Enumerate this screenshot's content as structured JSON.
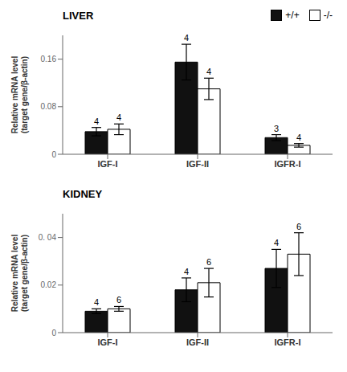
{
  "chart_data": [
    {
      "type": "bar",
      "title": "LIVER",
      "categories": [
        "IGF-I",
        "IGF-II",
        "IGFR-I"
      ],
      "series": [
        {
          "name": "+/+",
          "color": "#111111",
          "values": [
            0.038,
            0.155,
            0.028
          ],
          "errors": [
            0.007,
            0.03,
            0.005
          ],
          "n": [
            "4",
            "4",
            "3"
          ]
        },
        {
          "name": "-/-",
          "color": "#ffffff",
          "values": [
            0.042,
            0.11,
            0.015
          ],
          "errors": [
            0.009,
            0.018,
            0.003
          ],
          "n": [
            "4",
            "4",
            "4"
          ]
        }
      ],
      "ylabel": "Relative mRNA level\n(target gene/β-actin)",
      "ylim": [
        0,
        0.2
      ],
      "yticks": [
        0,
        0.08,
        0.16
      ],
      "legend": "upper right"
    },
    {
      "type": "bar",
      "title": "KIDNEY",
      "categories": [
        "IGF-I",
        "IGF-II",
        "IGFR-I"
      ],
      "series": [
        {
          "name": "+/+",
          "color": "#111111",
          "values": [
            0.009,
            0.018,
            0.027
          ],
          "errors": [
            0.001,
            0.005,
            0.008
          ],
          "n": [
            "4",
            "4",
            "4"
          ]
        },
        {
          "name": "-/-",
          "color": "#ffffff",
          "values": [
            0.01,
            0.021,
            0.033
          ],
          "errors": [
            0.001,
            0.006,
            0.009
          ],
          "n": [
            "6",
            "6",
            "6"
          ]
        }
      ],
      "ylabel": "Relative mRNA level\n(target gene/β-actin)",
      "ylim": [
        0,
        0.05
      ],
      "yticks": [
        0,
        0.02,
        {
          "value": 0.04,
          "label": "0. 04"
        }
      ]
    }
  ]
}
